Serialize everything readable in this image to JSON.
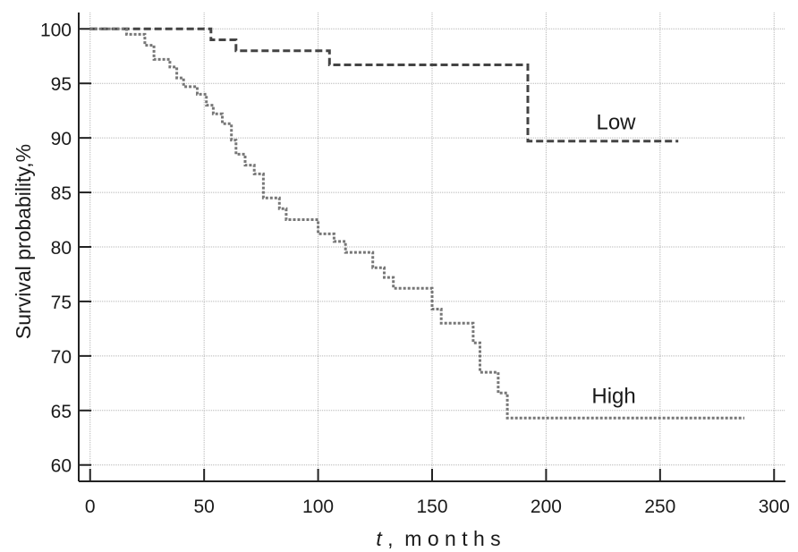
{
  "chart_data": {
    "type": "line",
    "title": "",
    "xlabel_var": "t",
    "xlabel_unit": ",  m o n t h s",
    "ylabel": "Survival probability,%",
    "xlim": [
      -5,
      305
    ],
    "ylim": [
      58.5,
      101.5
    ],
    "x_ticks": [
      0,
      50,
      100,
      150,
      200,
      250,
      300
    ],
    "y_ticks": [
      60,
      65,
      70,
      75,
      80,
      85,
      90,
      95,
      100
    ],
    "grid": true,
    "series": [
      {
        "name": "Low",
        "style": "dashed",
        "color": "#444444",
        "label_at": [
          222,
          90.8
        ],
        "points": [
          [
            0,
            100
          ],
          [
            53,
            100
          ],
          [
            53,
            99
          ],
          [
            64,
            99
          ],
          [
            64,
            98
          ],
          [
            105,
            98
          ],
          [
            105,
            96.7
          ],
          [
            192,
            96.7
          ],
          [
            192,
            89.7
          ],
          [
            258,
            89.7
          ]
        ]
      },
      {
        "name": "High",
        "style": "dotted",
        "color": "#777777",
        "label_at": [
          220,
          65.7
        ],
        "points": [
          [
            0,
            100
          ],
          [
            16,
            100
          ],
          [
            16,
            99.5
          ],
          [
            24,
            99.5
          ],
          [
            24,
            98.5
          ],
          [
            28,
            98.5
          ],
          [
            28,
            97.2
          ],
          [
            35,
            97.2
          ],
          [
            35,
            96.5
          ],
          [
            38,
            96.5
          ],
          [
            38,
            95.5
          ],
          [
            41,
            95.5
          ],
          [
            41,
            94.7
          ],
          [
            47,
            94.7
          ],
          [
            47,
            94
          ],
          [
            51,
            94
          ],
          [
            51,
            93
          ],
          [
            54,
            93
          ],
          [
            54,
            92.2
          ],
          [
            58,
            92.2
          ],
          [
            58,
            91.3
          ],
          [
            62,
            91.3
          ],
          [
            62,
            89.8
          ],
          [
            64,
            89.8
          ],
          [
            64,
            88.5
          ],
          [
            68,
            88.5
          ],
          [
            68,
            87.5
          ],
          [
            72,
            87.5
          ],
          [
            72,
            86.7
          ],
          [
            76,
            86.7
          ],
          [
            76,
            84.5
          ],
          [
            83,
            84.5
          ],
          [
            83,
            83.5
          ],
          [
            86,
            83.5
          ],
          [
            86,
            82.5
          ],
          [
            100,
            82.5
          ],
          [
            100,
            81.2
          ],
          [
            107,
            81.2
          ],
          [
            107,
            80.5
          ],
          [
            112,
            80.5
          ],
          [
            112,
            79.5
          ],
          [
            124,
            79.5
          ],
          [
            124,
            78.1
          ],
          [
            129,
            78.1
          ],
          [
            129,
            77.2
          ],
          [
            133,
            77.2
          ],
          [
            133,
            76.2
          ],
          [
            150,
            76.2
          ],
          [
            150,
            74.3
          ],
          [
            154,
            74.3
          ],
          [
            154,
            73
          ],
          [
            168,
            73
          ],
          [
            168,
            71.2
          ],
          [
            171,
            71.2
          ],
          [
            171,
            68.5
          ],
          [
            179,
            68.5
          ],
          [
            179,
            66.6
          ],
          [
            183,
            66.6
          ],
          [
            183,
            64.3
          ],
          [
            287,
            64.3
          ]
        ]
      }
    ]
  }
}
